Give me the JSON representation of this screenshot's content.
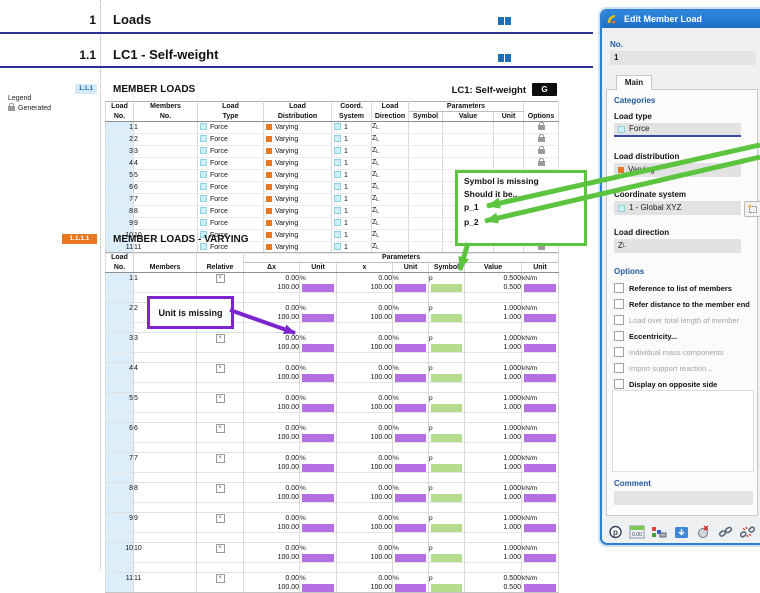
{
  "colors": {
    "accent_orange": "#e87722",
    "accent_cyan": "#cdeff6",
    "highlight_purple": "#b66fe2",
    "highlight_green": "#b5dd8d",
    "annotation_green": "#5cc43e",
    "annotation_purple": "#7c25cf",
    "heading_rule_navy": "#2e3192",
    "dialog_titlebar_blue": "#2b7fd7"
  },
  "report": {
    "margin_numbers": {
      "h1": "1",
      "h2": "1.1"
    },
    "headings": {
      "h1": "Loads",
      "h2": "LC1 - Self-weight"
    },
    "legend": {
      "title": "Legend",
      "generated_label": "Generated"
    },
    "table1": {
      "number": "1.1.1",
      "title": "MEMBER LOADS",
      "context_label": "LC1: Self-weight",
      "context_badge": "G",
      "header": {
        "row1": [
          "Load",
          "Members",
          "Load",
          "Load",
          "Coord.",
          "Load"
        ],
        "params_group": "Parameters",
        "row2": [
          "No.",
          "No.",
          "Type",
          "Distribution",
          "System",
          "Direction",
          "Symbol",
          "Value",
          "Unit",
          "Options"
        ]
      },
      "cell_defaults": {
        "load_type": "Force",
        "load_distribution": "Varying",
        "coord_system": "1",
        "direction_main": "Z",
        "direction_sub": "L"
      },
      "rows": [
        {
          "no": "1",
          "members": "1"
        },
        {
          "no": "2",
          "members": "2"
        },
        {
          "no": "3",
          "members": "3"
        },
        {
          "no": "4",
          "members": "4"
        },
        {
          "no": "5",
          "members": "5"
        },
        {
          "no": "6",
          "members": "6"
        },
        {
          "no": "7",
          "members": "7"
        },
        {
          "no": "8",
          "members": "8"
        },
        {
          "no": "9",
          "members": "9"
        },
        {
          "no": "10",
          "members": "10"
        },
        {
          "no": "11",
          "members": "11"
        }
      ]
    },
    "table2": {
      "number": "1.1.1.1",
      "title": "MEMBER LOADS - VARYING",
      "header": {
        "row1_load": "Load",
        "params_group": "Parameters",
        "row2": [
          "No.",
          "Members",
          "Relative",
          "Δx",
          "Unit",
          "x",
          "Unit",
          "Symbol",
          "Value",
          "Unit"
        ]
      },
      "cell_defaults": {
        "dx": [
          "0.00",
          "100.00"
        ],
        "x": [
          "0.00",
          "100.00"
        ],
        "percent_unit": "%",
        "symbol": "p",
        "force_unit": "kN/m",
        "relative_checked": true,
        "checkbox_cross": "×"
      },
      "rows": [
        {
          "no": "1",
          "members": "1",
          "values": [
            "0.500",
            "0.500"
          ]
        },
        {
          "no": "2",
          "members": "2",
          "values": [
            "1.000",
            "1.000"
          ]
        },
        {
          "no": "3",
          "members": "3",
          "values": [
            "1.000",
            "1.000"
          ]
        },
        {
          "no": "4",
          "members": "4",
          "values": [
            "1.000",
            "1.000"
          ]
        },
        {
          "no": "5",
          "members": "5",
          "values": [
            "1.000",
            "1.000"
          ]
        },
        {
          "no": "6",
          "members": "6",
          "values": [
            "1.000",
            "1.000"
          ]
        },
        {
          "no": "7",
          "members": "7",
          "values": [
            "1.000",
            "1.000"
          ]
        },
        {
          "no": "8",
          "members": "8",
          "values": [
            "1.000",
            "1.000"
          ]
        },
        {
          "no": "9",
          "members": "9",
          "values": [
            "1.000",
            "1.000"
          ]
        },
        {
          "no": "10",
          "members": "10",
          "values": [
            "1.000",
            "1.000"
          ]
        },
        {
          "no": "11",
          "members": "11",
          "values": [
            "0.500",
            "0.500"
          ]
        }
      ]
    }
  },
  "annotations": {
    "green_note": {
      "lines": [
        "Symbol is missing",
        "Should it be..",
        "p_1",
        "p_2"
      ]
    },
    "purple_note": {
      "label": "Unit is missing"
    }
  },
  "dialog": {
    "title": "Edit Member Load",
    "no_label": "No.",
    "no_value": "1",
    "tab_label": "Main",
    "categories_label": "Categories",
    "fields": [
      {
        "label": "Load type",
        "value": "Force"
      },
      {
        "label": "Load distribution",
        "value": "Varying"
      },
      {
        "label": "Coordinate system",
        "value": "1 - Global XYZ"
      },
      {
        "label": "Load direction",
        "value_main": "Z",
        "value_sub": "L"
      }
    ],
    "options_label": "Options",
    "options": [
      {
        "label": "Reference to list of members",
        "enabled": true
      },
      {
        "label": "Refer distance to the member end",
        "enabled": true
      },
      {
        "label": "Load over total length of member",
        "enabled": false
      },
      {
        "label": "Eccentricity...",
        "enabled": true
      },
      {
        "label": "Individual mass components",
        "enabled": false
      },
      {
        "label": "Import support reaction...",
        "enabled": false
      },
      {
        "label": "Display on opposite side",
        "enabled": true
      }
    ],
    "comment_label": "Comment",
    "toolbar_icons": [
      "bubble-p",
      "calculator",
      "display-colors",
      "import",
      "delete-crossed",
      "link",
      "unlink"
    ]
  }
}
